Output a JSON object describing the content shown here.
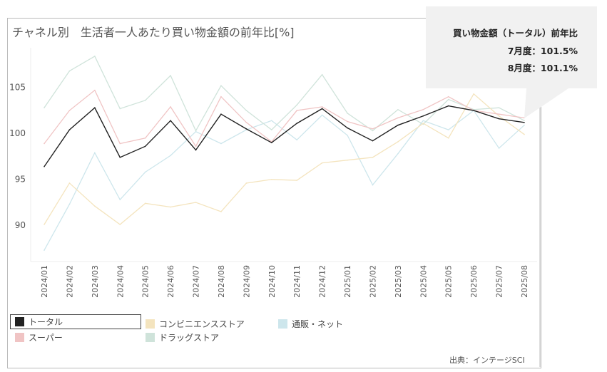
{
  "chart_data": {
    "type": "line",
    "title": "チャネル別　生活者一人あたり買い物金額の前年比[%]",
    "xlabel": "",
    "ylabel": "",
    "ylim": [
      86.5,
      109.5
    ],
    "yticks": [
      90,
      95,
      100,
      105
    ],
    "x": [
      "2024/01",
      "2024/02",
      "2024/03",
      "2024/04",
      "2024/05",
      "2024/06",
      "2024/07",
      "2024/08",
      "2024/09",
      "2024/10",
      "2024/11",
      "2024/12",
      "2025/01",
      "2025/02",
      "2025/03",
      "2025/04",
      "2025/05",
      "2025/06",
      "2025/07",
      "2025/08"
    ],
    "series": [
      {
        "name": "トータル",
        "color": "#222222",
        "values": [
          96.3,
          100.3,
          102.7,
          97.3,
          98.5,
          101.3,
          98.1,
          102.0,
          100.4,
          98.9,
          101.0,
          102.6,
          100.5,
          99.1,
          100.8,
          101.8,
          102.9,
          102.4,
          101.5,
          101.1
        ]
      },
      {
        "name": "スーパー",
        "color": "#f0c4c4",
        "values": [
          98.8,
          102.4,
          104.6,
          98.8,
          99.4,
          102.8,
          98.5,
          103.9,
          101.1,
          99.0,
          102.4,
          102.8,
          101.2,
          100.4,
          101.6,
          102.5,
          103.9,
          102.4,
          102.0,
          101.6
        ]
      },
      {
        "name": "コンビニエンスストア",
        "color": "#f4e4be",
        "values": [
          90.0,
          94.5,
          92.0,
          90.0,
          92.3,
          91.9,
          92.4,
          91.4,
          94.5,
          94.9,
          94.8,
          96.7,
          97.0,
          97.3,
          99.0,
          101.0,
          99.4,
          104.2,
          101.8,
          99.8
        ]
      },
      {
        "name": "ドラッグストア",
        "color": "#cfe3da",
        "values": [
          102.7,
          106.7,
          108.3,
          102.6,
          103.5,
          106.2,
          100.2,
          105.1,
          102.4,
          100.3,
          103.0,
          106.3,
          102.1,
          100.2,
          102.5,
          100.9,
          103.6,
          102.5,
          102.7,
          101.3
        ]
      },
      {
        "name": "通販・ネット",
        "color": "#cde6ec",
        "values": [
          87.2,
          92.2,
          97.8,
          92.7,
          95.7,
          97.5,
          100.1,
          98.8,
          100.3,
          101.3,
          99.2,
          101.9,
          99.7,
          94.3,
          97.7,
          101.3,
          100.3,
          102.4,
          98.3,
          100.8
        ]
      }
    ],
    "legend_position": "bottom",
    "annotation": {
      "title": "買い物金額（トータル）前年比",
      "line1": "7月度：101.5%",
      "line2": "8月度：101.1%"
    },
    "source": "出典：インテージSCI"
  }
}
